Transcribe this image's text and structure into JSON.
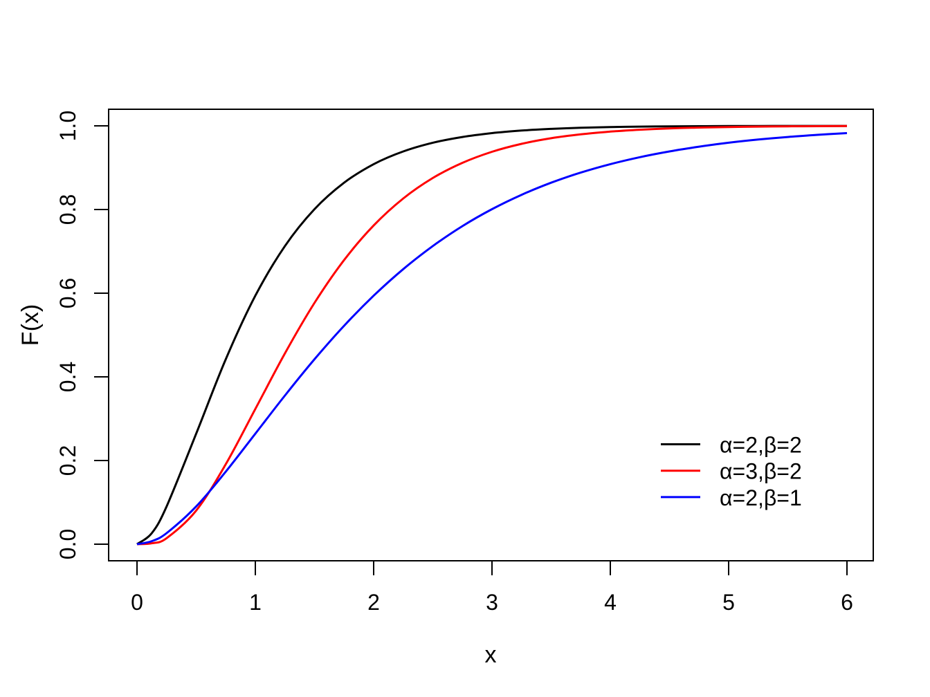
{
  "chart_data": {
    "type": "line",
    "title": "",
    "xlabel": "x",
    "ylabel": "F(x)",
    "xlim": [
      0,
      6
    ],
    "ylim": [
      0,
      1
    ],
    "grid": false,
    "background": "#FFFFFF",
    "axis_color": "#000000",
    "legend_position": "inside-bottom-right",
    "legend_border": false,
    "x_ticks": [
      0,
      1,
      2,
      3,
      4,
      5,
      6
    ],
    "x_tick_labels": [
      "0",
      "1",
      "2",
      "3",
      "4",
      "5",
      "6"
    ],
    "y_ticks": [
      0,
      0.2,
      0.4,
      0.6,
      0.8,
      1.0
    ],
    "y_tick_labels": [
      "0.0",
      "0.2",
      "0.4",
      "0.6",
      "0.8",
      "1.0"
    ],
    "x": [
      0,
      0.125,
      0.25,
      0.5,
      0.75,
      1,
      1.25,
      1.5,
      1.75,
      2,
      2.25,
      2.5,
      2.75,
      3,
      3.25,
      3.5,
      3.75,
      4,
      4.25,
      4.5,
      4.75,
      5,
      5.25,
      5.5,
      5.75,
      6
    ],
    "series": [
      {
        "id": "alpha2-beta2",
        "name": "α=2,β=2",
        "color": "#000000",
        "values": [
          0,
          0.0265,
          0.0902,
          0.2642,
          0.4422,
          0.594,
          0.7127,
          0.8009,
          0.8641,
          0.9084,
          0.9389,
          0.9596,
          0.9734,
          0.9826,
          0.9887,
          0.9927,
          0.9953,
          0.997,
          0.9981,
          0.9988,
          0.9992,
          0.9995,
          0.9997,
          0.9998,
          0.9999,
          0.9999
        ]
      },
      {
        "id": "alpha3-beta2",
        "name": "α=3,β=2",
        "color": "#FF0000",
        "values": [
          0,
          0.0022,
          0.0144,
          0.0803,
          0.1912,
          0.3233,
          0.4562,
          0.5768,
          0.6792,
          0.7619,
          0.8264,
          0.8753,
          0.9116,
          0.938,
          0.957,
          0.9704,
          0.9797,
          0.9862,
          0.9907,
          0.9938,
          0.9958,
          0.9972,
          0.9982,
          0.9988,
          0.9992,
          0.9995
        ]
      },
      {
        "id": "alpha2-beta1",
        "name": "α=2,β=1",
        "color": "#0000FF",
        "values": [
          0,
          0.0072,
          0.0265,
          0.0902,
          0.1734,
          0.2642,
          0.3554,
          0.4422,
          0.5221,
          0.594,
          0.6575,
          0.7127,
          0.7603,
          0.8009,
          0.8352,
          0.8641,
          0.8883,
          0.9084,
          0.9251,
          0.9389,
          0.9503,
          0.9596,
          0.9672,
          0.9734,
          0.9785,
          0.9826
        ]
      }
    ]
  }
}
